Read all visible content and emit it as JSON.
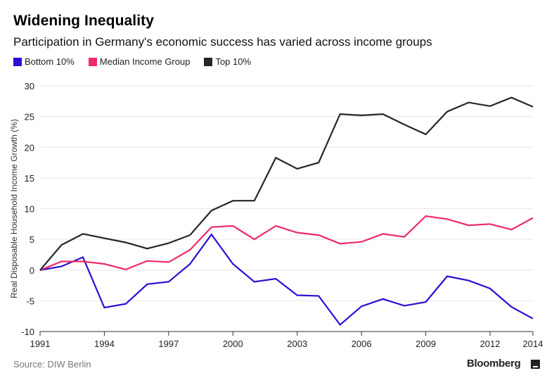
{
  "header": {
    "title": "Widening Inequality",
    "subtitle": "Participation in Germany's economic success has varied across income groups"
  },
  "footer": {
    "source": "Source: DIW Berlin",
    "brand": "Bloomberg"
  },
  "chart_data": {
    "type": "line",
    "ylabel": "Real Disposable Household Income Growth (%)",
    "xlabel": "",
    "x": [
      1991,
      1992,
      1993,
      1994,
      1995,
      1996,
      1997,
      1998,
      1999,
      2000,
      2001,
      2002,
      2003,
      2004,
      2005,
      2006,
      2007,
      2008,
      2009,
      2010,
      2011,
      2012,
      2013,
      2014
    ],
    "xlim": [
      1991,
      2014
    ],
    "ylim": [
      -10,
      30
    ],
    "x_ticks": [
      "1991",
      "1994",
      "1997",
      "2000",
      "2003",
      "2006",
      "2009",
      "2012",
      "2014"
    ],
    "y_ticks": [
      "30",
      "25",
      "20",
      "15",
      "10",
      "5",
      "0",
      "-5",
      "-10"
    ],
    "grid": "horizontal",
    "legend_position": "top-left",
    "series": [
      {
        "name": "Bottom 10%",
        "color": "#2a0fd4",
        "values": [
          0,
          0.6,
          2.1,
          -6.1,
          -5.5,
          -2.3,
          -1.9,
          1.0,
          5.8,
          1.0,
          -1.9,
          -1.4,
          -4.1,
          -4.2,
          -8.9,
          -5.9,
          -4.7,
          -5.8,
          -5.2,
          -1.0,
          -1.7,
          -3.0,
          -6.0,
          -7.9
        ]
      },
      {
        "name": "Median Income Group",
        "color": "#ee2a6b",
        "values": [
          0,
          1.4,
          1.4,
          1.0,
          0.1,
          1.5,
          1.3,
          3.3,
          7.0,
          7.2,
          5.0,
          7.2,
          6.1,
          5.7,
          4.3,
          4.6,
          5.9,
          5.4,
          8.8,
          8.3,
          7.3,
          7.5,
          6.6,
          8.5
        ]
      },
      {
        "name": "Top 10%",
        "color": "#262626",
        "values": [
          0,
          4.1,
          5.9,
          5.2,
          4.5,
          3.5,
          4.4,
          5.7,
          9.7,
          11.3,
          11.3,
          18.3,
          16.5,
          17.5,
          25.4,
          25.2,
          25.4,
          23.7,
          22.1,
          25.8,
          27.3,
          26.7,
          28.1,
          26.6
        ]
      }
    ]
  }
}
